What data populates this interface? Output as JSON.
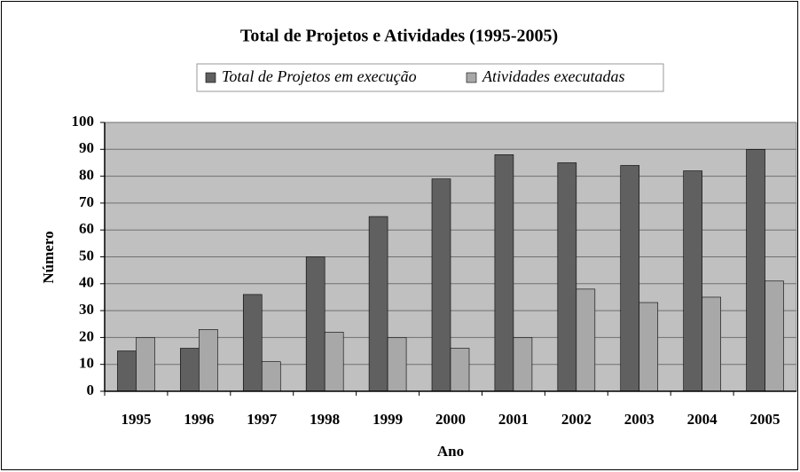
{
  "chart_data": {
    "type": "bar",
    "title": "Total de Projetos e Atividades (1995-2005)",
    "x_label": "Ano",
    "y_label": "Número",
    "categories": [
      "1995",
      "1996",
      "1997",
      "1998",
      "1999",
      "2000",
      "2001",
      "2002",
      "2003",
      "2004",
      "2005"
    ],
    "series": [
      {
        "name": "Total de Projetos em execução",
        "color": "#606060",
        "values": [
          15,
          16,
          36,
          50,
          65,
          79,
          88,
          85,
          84,
          82,
          90
        ]
      },
      {
        "name": "Atividades executadas",
        "color": "#a8a8a8",
        "values": [
          20,
          23,
          11,
          22,
          20,
          16,
          20,
          38,
          33,
          35,
          41
        ]
      }
    ],
    "ylim": [
      0,
      100
    ],
    "yticks": [
      0,
      10,
      20,
      30,
      40,
      50,
      60,
      70,
      80,
      90,
      100
    ],
    "grid": true,
    "legend": "top"
  }
}
